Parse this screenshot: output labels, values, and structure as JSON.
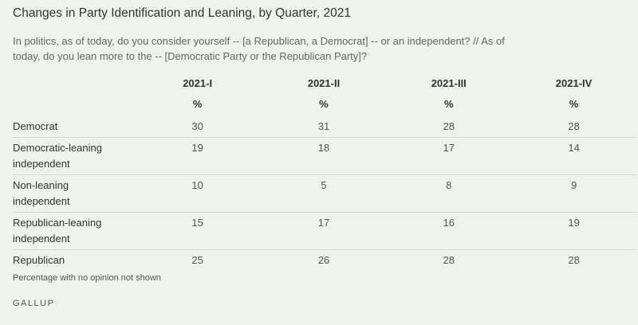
{
  "header": {
    "title": "Changes in Party Identification and Leaning, by Quarter, 2021",
    "subtitle": "In politics, as of today, do you consider yourself -- [a Republican, a Democrat] -- or an independent? // As of today, do you lean more to the -- [Democratic Party or the Republican Party]?"
  },
  "table": {
    "columns": [
      "2021-I",
      "2021-II",
      "2021-III",
      "2021-IV"
    ],
    "units": [
      "%",
      "%",
      "%",
      "%"
    ],
    "rows": [
      {
        "label": "Democrat",
        "values": [
          30,
          31,
          28,
          28
        ]
      },
      {
        "label": "Democratic-leaning independent",
        "values": [
          19,
          18,
          17,
          14
        ]
      },
      {
        "label": "Non-leaning independent",
        "values": [
          10,
          5,
          8,
          9
        ]
      },
      {
        "label": "Republican-leaning independent",
        "values": [
          15,
          17,
          16,
          19
        ]
      },
      {
        "label": "Republican",
        "values": [
          25,
          26,
          28,
          28
        ]
      }
    ]
  },
  "note": "Percentage with no opinion not shown",
  "source": "GALLUP"
}
